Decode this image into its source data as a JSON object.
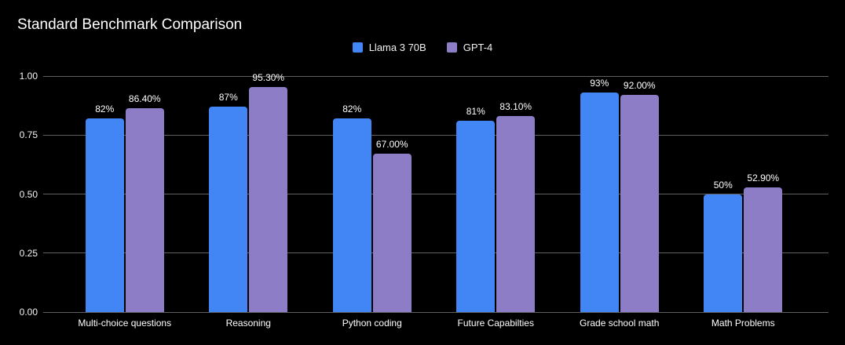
{
  "page": {
    "background": "#000000",
    "text_color": "#ffffff",
    "gridline_color": "#606060"
  },
  "chart_data": {
    "type": "bar",
    "title": "Standard Benchmark Comparison",
    "categories": [
      "Multi-choice questions",
      "Reasoning",
      "Python coding",
      "Future Capabilties",
      "Grade school math",
      "Math Problems"
    ],
    "series": [
      {
        "name": "Llama 3 70B",
        "color": "#4285F4",
        "values": [
          0.82,
          0.87,
          0.82,
          0.81,
          0.93,
          0.5
        ],
        "labels": [
          "82%",
          "87%",
          "82%",
          "81%",
          "93%",
          "50%"
        ]
      },
      {
        "name": "GPT-4",
        "color": "#8C7DC6",
        "values": [
          0.864,
          0.953,
          0.67,
          0.831,
          0.92,
          0.529
        ],
        "labels": [
          "86.40%",
          "95.30%",
          "67.00%",
          "83.10%",
          "92.00%",
          "52.90%"
        ]
      }
    ],
    "y_axis": {
      "min": 0,
      "max": 1,
      "ticks": [
        {
          "label": "1.00",
          "value": 1.0
        },
        {
          "label": "0.75",
          "value": 0.75
        },
        {
          "label": "0.50",
          "value": 0.5
        },
        {
          "label": "0.25",
          "value": 0.25
        },
        {
          "label": "0.00",
          "value": 0.0
        }
      ]
    },
    "grid": true,
    "legend_position": "top-center"
  }
}
